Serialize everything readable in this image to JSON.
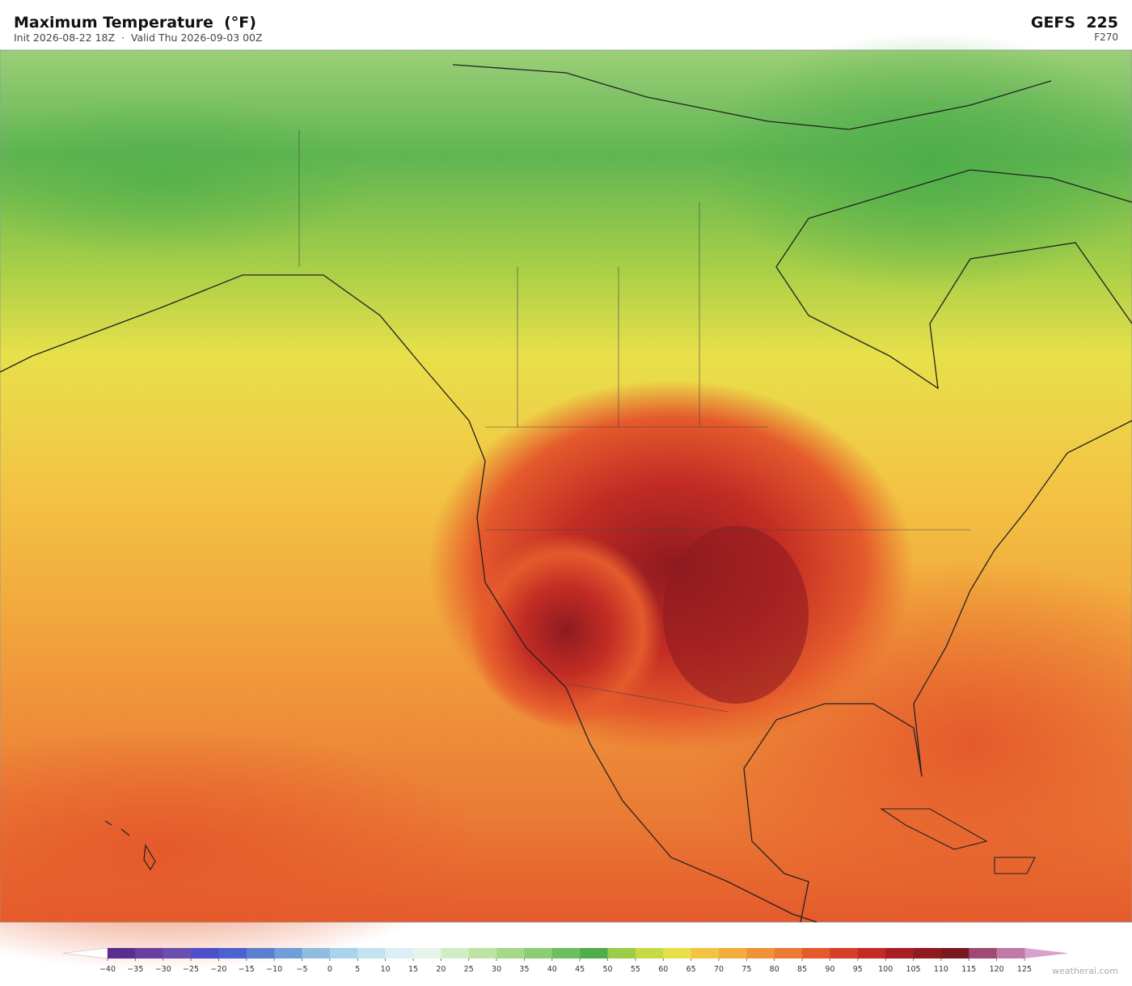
{
  "header": {
    "title": "Maximum Temperature  (°F)",
    "subtitle": "Init 2026-08-22 18Z  ·  Valid Thu 2026-09-03 00Z",
    "model": "GEFS  225",
    "forecast_hour": "F270"
  },
  "colorbar": {
    "ticks": [
      {
        "value": -40,
        "label": "−40"
      },
      {
        "value": -35,
        "label": "−35"
      },
      {
        "value": -30,
        "label": "−30"
      },
      {
        "value": -25,
        "label": "−25"
      },
      {
        "value": -20,
        "label": "−20"
      },
      {
        "value": -15,
        "label": "−15"
      },
      {
        "value": -10,
        "label": "−10"
      },
      {
        "value": -5,
        "label": "−5"
      },
      0,
      5,
      10,
      15,
      20,
      25,
      30,
      35,
      40,
      45,
      50,
      55,
      60,
      65,
      70,
      75,
      80,
      85,
      90,
      95,
      100,
      105,
      110,
      115,
      120,
      125
    ],
    "colors": [
      "#5b2d8e",
      "#6b3fa0",
      "#6a4fb0",
      "#4f4fc8",
      "#4b62d0",
      "#5b7fd0",
      "#709ed8",
      "#8fbde0",
      "#a8d3ea",
      "#c4e3f0",
      "#dceff4",
      "#e6f4ea",
      "#d2ecc8",
      "#bfe3a4",
      "#a5d888",
      "#8ccc74",
      "#6dbe5e",
      "#4fae4a",
      "#9ccc48",
      "#c6d946",
      "#e8e04a",
      "#f3c444",
      "#f2ad3e",
      "#ef923a",
      "#ea7a34",
      "#e55a2c",
      "#d63f28",
      "#c22c24",
      "#a81e22",
      "#8f1a20",
      "#7a1822",
      "#9e4a72",
      "#c07aa8"
    ],
    "under_color": "#ffffff",
    "over_color": "#d8a0cc"
  },
  "footer": {
    "watermark": "weatherai.com"
  }
}
